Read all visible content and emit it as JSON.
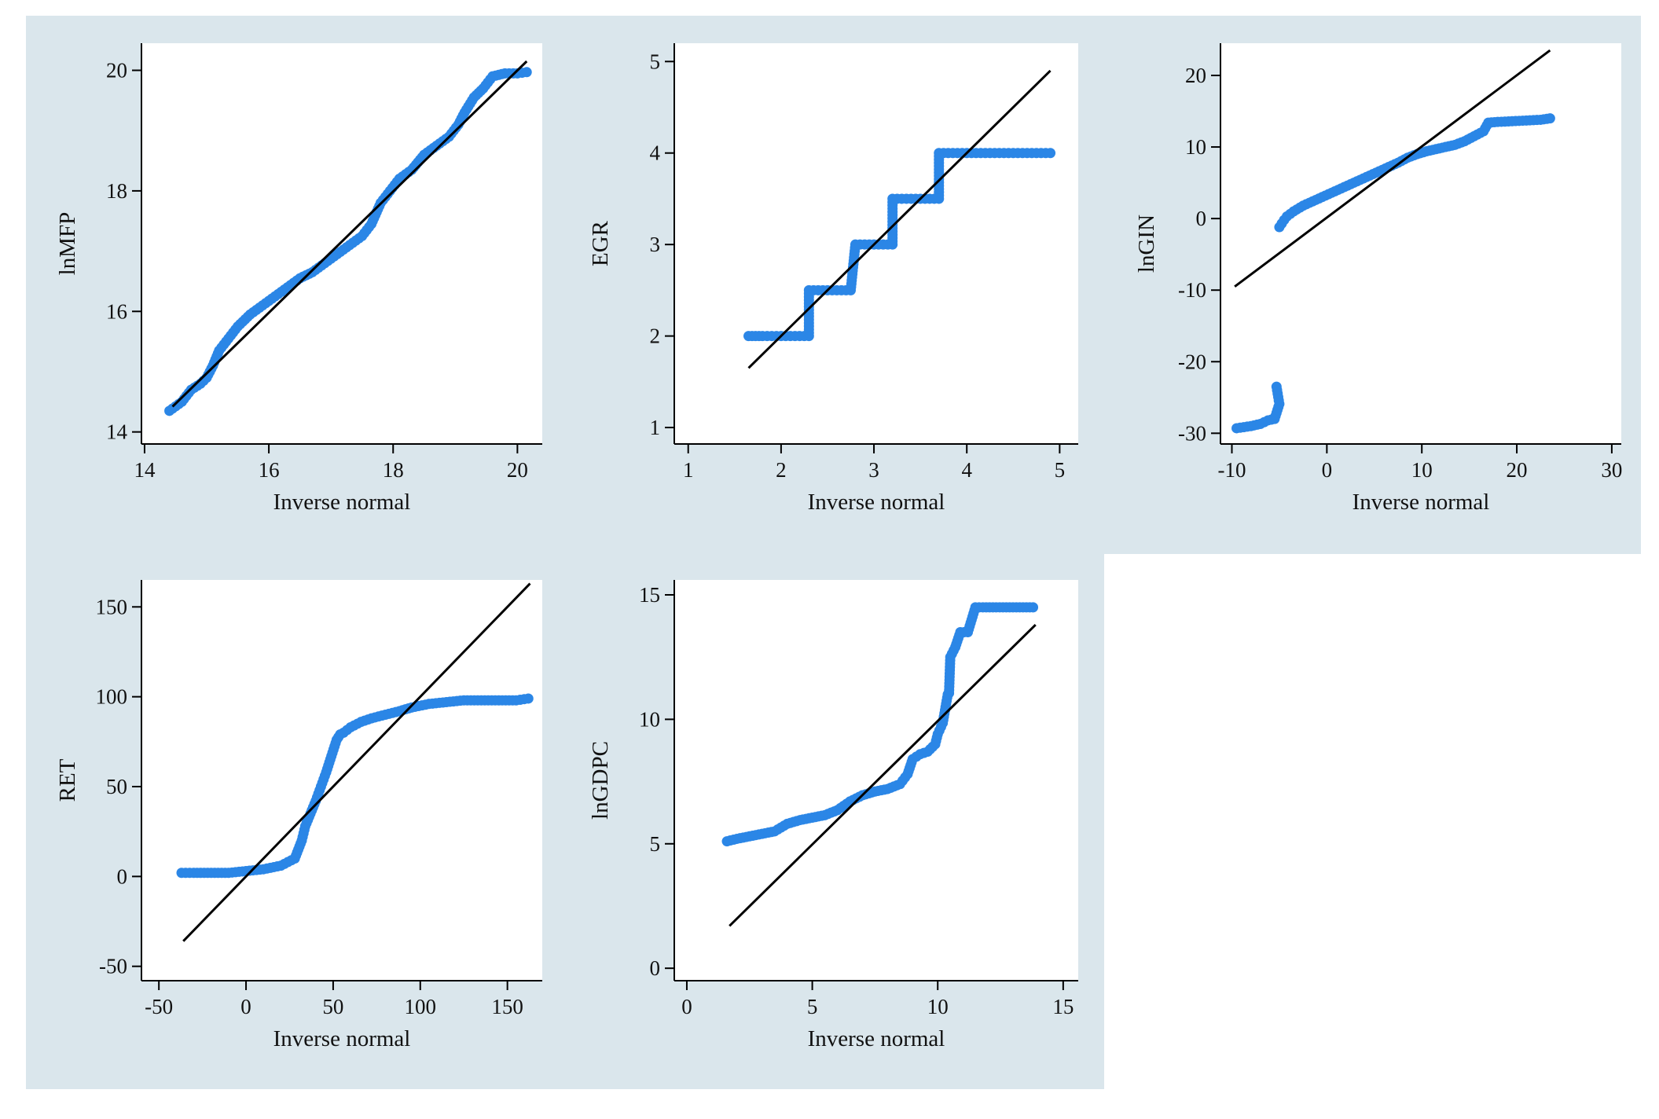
{
  "colors": {
    "background": "#dae6ec",
    "points": "#2b86e6",
    "line": "#000000"
  },
  "chart_data": [
    {
      "type": "scatter",
      "subtype": "qq-plot",
      "ylabel": "lnMFP",
      "xlabel": "Inverse normal",
      "xlim": [
        13.95,
        20.4
      ],
      "ylim": [
        13.8,
        20.45
      ],
      "xticks": [
        14,
        16,
        18,
        20
      ],
      "yticks": [
        14,
        16,
        18,
        20
      ],
      "reference_line": [
        [
          14.45,
          14.42
        ],
        [
          20.15,
          20.15
        ]
      ],
      "x": [
        14.4,
        14.6,
        14.75,
        14.9,
        15.0,
        15.1,
        15.2,
        15.35,
        15.5,
        15.7,
        15.9,
        16.1,
        16.3,
        16.5,
        16.7,
        16.9,
        17.1,
        17.3,
        17.5,
        17.65,
        17.8,
        17.95,
        18.1,
        18.3,
        18.5,
        18.7,
        18.9,
        19.05,
        19.15,
        19.3,
        19.45,
        19.6,
        19.8,
        20.0,
        20.15
      ],
      "y": [
        14.35,
        14.5,
        14.7,
        14.8,
        14.9,
        15.1,
        15.35,
        15.55,
        15.75,
        15.95,
        16.1,
        16.25,
        16.4,
        16.55,
        16.65,
        16.8,
        16.95,
        17.1,
        17.25,
        17.45,
        17.8,
        18.0,
        18.2,
        18.35,
        18.6,
        18.75,
        18.9,
        19.1,
        19.3,
        19.55,
        19.7,
        19.9,
        19.95,
        19.95,
        19.97
      ]
    },
    {
      "type": "scatter",
      "subtype": "qq-plot",
      "ylabel": "EGR",
      "xlabel": "Inverse normal",
      "xlim": [
        0.85,
        5.2
      ],
      "ylim": [
        0.82,
        5.2
      ],
      "xticks": [
        1,
        2,
        3,
        4,
        5
      ],
      "yticks": [
        1,
        2,
        3,
        4,
        5
      ],
      "reference_line": [
        [
          1.65,
          1.65
        ],
        [
          4.9,
          4.9
        ]
      ],
      "x": [
        1.65,
        1.8,
        1.9,
        2.0,
        2.1,
        2.2,
        2.3,
        2.3,
        2.4,
        2.5,
        2.6,
        2.7,
        2.75,
        2.8,
        2.9,
        3.0,
        3.1,
        3.2,
        3.2,
        3.3,
        3.4,
        3.5,
        3.6,
        3.7,
        3.7,
        3.8,
        3.9,
        4.0,
        4.1,
        4.2,
        4.3,
        4.4,
        4.5,
        4.6,
        4.7,
        4.8,
        4.9
      ],
      "y": [
        2,
        2,
        2,
        2,
        2,
        2,
        2,
        2.5,
        2.5,
        2.5,
        2.5,
        2.5,
        2.5,
        3,
        3,
        3,
        3,
        3,
        3.5,
        3.5,
        3.5,
        3.5,
        3.5,
        3.5,
        4,
        4,
        4,
        4,
        4,
        4,
        4,
        4,
        4,
        4,
        4,
        4,
        4
      ]
    },
    {
      "type": "scatter",
      "subtype": "qq-plot",
      "ylabel": "lnGIN",
      "xlabel": "Inverse normal",
      "xlim": [
        -11.2,
        31
      ],
      "ylim": [
        -31.5,
        24.5
      ],
      "xticks": [
        -10,
        0,
        10,
        20,
        30
      ],
      "yticks": [
        -30,
        -20,
        -10,
        0,
        10,
        20
      ],
      "reference_line": [
        [
          -9.7,
          -9.5
        ],
        [
          23.5,
          23.5
        ]
      ],
      "x": [
        -9.5,
        -8.0,
        -7.0,
        -6.2,
        -5.5,
        -5.0,
        -5.3,
        -5.0,
        -4.5,
        -4.2,
        -3.5,
        -2.5,
        -1.5,
        -0.5,
        0.5,
        1.5,
        2.5,
        3.5,
        4.5,
        5.5,
        6.5,
        7.5,
        8.5,
        9.5,
        10.5,
        11.5,
        12.5,
        13.5,
        14.5,
        15.5,
        16.5,
        17.0,
        18.0,
        19.5,
        21.0,
        22.5,
        23.5
      ],
      "y": [
        -29.3,
        -29.0,
        -28.7,
        -28.2,
        -28.0,
        -25.9,
        -23.5,
        -1.2,
        -0.2,
        0.3,
        1.0,
        1.8,
        2.4,
        3.0,
        3.6,
        4.2,
        4.8,
        5.4,
        6.0,
        6.6,
        7.2,
        7.8,
        8.5,
        9.0,
        9.4,
        9.7,
        10.0,
        10.3,
        10.8,
        11.5,
        12.2,
        13.4,
        13.5,
        13.6,
        13.7,
        13.8,
        14.0
      ]
    },
    {
      "type": "scatter",
      "subtype": "qq-plot",
      "ylabel": "RET",
      "xlabel": "Inverse normal",
      "xlim": [
        -60,
        170
      ],
      "ylim": [
        -58,
        165
      ],
      "xticks": [
        -50,
        0,
        50,
        100,
        150
      ],
      "yticks": [
        -50,
        0,
        50,
        100,
        150
      ],
      "reference_line": [
        [
          -36,
          -36
        ],
        [
          163,
          163
        ]
      ],
      "x": [
        -37,
        -30,
        -20,
        -10,
        0,
        10,
        20,
        28,
        32,
        34,
        37,
        40,
        43,
        46,
        49,
        52,
        54,
        56,
        60,
        66,
        72,
        80,
        88,
        95,
        105,
        115,
        125,
        135,
        145,
        155,
        162
      ],
      "y": [
        2,
        2,
        2,
        2,
        3,
        4,
        6,
        10,
        20,
        28,
        35,
        42,
        50,
        58,
        67,
        76,
        79,
        80,
        83,
        86,
        88,
        90,
        92,
        94,
        96,
        97,
        98,
        98,
        98,
        98,
        99
      ]
    },
    {
      "type": "scatter",
      "subtype": "qq-plot",
      "ylabel": "lnGDPC",
      "xlabel": "Inverse normal",
      "xlim": [
        -0.5,
        15.6
      ],
      "ylim": [
        -0.5,
        15.6
      ],
      "xticks": [
        0,
        5,
        10,
        15
      ],
      "yticks": [
        0,
        5,
        10,
        15
      ],
      "reference_line": [
        [
          1.7,
          1.7
        ],
        [
          13.9,
          13.8
        ]
      ],
      "x": [
        1.6,
        2.0,
        2.5,
        3.0,
        3.5,
        4.0,
        4.5,
        5.0,
        5.5,
        6.0,
        6.5,
        7.0,
        7.5,
        8.0,
        8.5,
        8.8,
        9.0,
        9.3,
        9.6,
        9.9,
        10.0,
        10.2,
        10.4,
        10.45,
        10.5,
        10.7,
        10.9,
        11.2,
        11.5,
        11.8,
        12.2,
        12.6,
        13.0,
        13.4,
        13.8
      ],
      "y": [
        5.1,
        5.2,
        5.3,
        5.4,
        5.5,
        5.8,
        5.95,
        6.05,
        6.15,
        6.35,
        6.7,
        6.95,
        7.1,
        7.2,
        7.4,
        7.8,
        8.4,
        8.6,
        8.7,
        9.0,
        9.4,
        9.85,
        11.0,
        11.05,
        12.5,
        12.9,
        13.5,
        13.5,
        14.5,
        14.5,
        14.5,
        14.5,
        14.5,
        14.5,
        14.5
      ]
    }
  ]
}
